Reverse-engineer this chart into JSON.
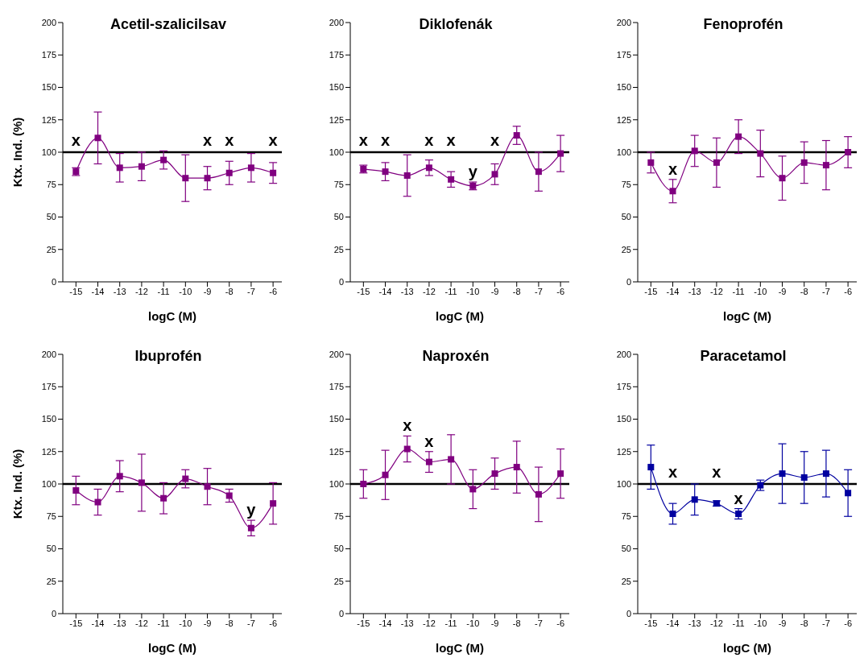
{
  "chart_data": [
    {
      "type": "line",
      "title": "Acetil-szalicilsav",
      "xlabel": "logC (M)",
      "ylabel": "Ktx. Ind. (%)",
      "x": [
        -15,
        -14,
        -13,
        -12,
        -11,
        -10,
        -9,
        -8,
        -7,
        -6
      ],
      "xlim": [
        -15.6,
        -5.6
      ],
      "xticks": [
        -15,
        -14,
        -13,
        -12,
        -11,
        -10,
        -9,
        -8,
        -7,
        -6
      ],
      "ylim": [
        0,
        200
      ],
      "yticks": [
        0,
        25,
        50,
        75,
        100,
        125,
        150,
        175,
        200
      ],
      "grid": false,
      "marker": "square",
      "legend": false,
      "series": [
        {
          "color": "#800080",
          "values": [
            85,
            111,
            88,
            89,
            94,
            80,
            80,
            84,
            88,
            84
          ],
          "errors": [
            3,
            20,
            11,
            11,
            7,
            18,
            9,
            9,
            11,
            8
          ],
          "value_labels": [
            "x",
            null,
            null,
            null,
            null,
            null,
            "x",
            "x",
            null,
            "x"
          ]
        }
      ],
      "ref_lines": [
        {
          "axis": "y",
          "value": 100,
          "color": "#000000"
        }
      ]
    },
    {
      "type": "line",
      "title": "Diklofenák",
      "xlabel": "logC (M)",
      "x": [
        -15,
        -14,
        -13,
        -12,
        -11,
        -10,
        -9,
        -8,
        -7,
        -6
      ],
      "xlim": [
        -15.6,
        -5.6
      ],
      "xticks": [
        -15,
        -14,
        -13,
        -12,
        -11,
        -10,
        -9,
        -8,
        -7,
        -6
      ],
      "ylim": [
        0,
        200
      ],
      "yticks": [
        0,
        25,
        50,
        75,
        100,
        125,
        150,
        175,
        200
      ],
      "grid": false,
      "marker": "square",
      "legend": false,
      "series": [
        {
          "color": "#800080",
          "values": [
            87,
            85,
            82,
            88,
            79,
            74,
            83,
            113,
            85,
            99
          ],
          "errors": [
            3,
            7,
            16,
            6,
            6,
            3,
            8,
            7,
            15,
            14
          ],
          "value_labels": [
            "x",
            "x",
            null,
            "x",
            "x",
            "y",
            "x",
            null,
            null,
            null
          ]
        }
      ],
      "ref_lines": [
        {
          "axis": "y",
          "value": 100,
          "color": "#000000"
        }
      ]
    },
    {
      "type": "line",
      "title": "Fenoprofén",
      "xlabel": "logC (M)",
      "x": [
        -15,
        -14,
        -13,
        -12,
        -11,
        -10,
        -9,
        -8,
        -7,
        -6
      ],
      "xlim": [
        -15.6,
        -5.6
      ],
      "xticks": [
        -15,
        -14,
        -13,
        -12,
        -11,
        -10,
        -9,
        -8,
        -7,
        -6
      ],
      "ylim": [
        0,
        200
      ],
      "yticks": [
        0,
        25,
        50,
        75,
        100,
        125,
        150,
        175,
        200
      ],
      "grid": false,
      "marker": "square",
      "legend": false,
      "series": [
        {
          "color": "#800080",
          "values": [
            92,
            70,
            101,
            92,
            112,
            99,
            80,
            92,
            90,
            100
          ],
          "errors": [
            8,
            9,
            12,
            19,
            13,
            18,
            17,
            16,
            19,
            12
          ],
          "value_labels": [
            null,
            "x",
            null,
            null,
            null,
            null,
            null,
            null,
            null,
            null
          ]
        }
      ],
      "ref_lines": [
        {
          "axis": "y",
          "value": 100,
          "color": "#000000"
        }
      ]
    },
    {
      "type": "line",
      "title": "Ibuprofén",
      "xlabel": "logC (M)",
      "ylabel": "Ktx. Ind. (%)",
      "x": [
        -15,
        -14,
        -13,
        -12,
        -11,
        -10,
        -9,
        -8,
        -7,
        -6
      ],
      "xlim": [
        -15.6,
        -5.6
      ],
      "xticks": [
        -15,
        -14,
        -13,
        -12,
        -11,
        -10,
        -9,
        -8,
        -7,
        -6
      ],
      "ylim": [
        0,
        200
      ],
      "yticks": [
        0,
        25,
        50,
        75,
        100,
        125,
        150,
        175,
        200
      ],
      "grid": false,
      "marker": "square",
      "legend": false,
      "series": [
        {
          "color": "#800080",
          "values": [
            95,
            86,
            106,
            101,
            89,
            104,
            98,
            91,
            66,
            85
          ],
          "errors": [
            11,
            10,
            12,
            22,
            12,
            7,
            14,
            5,
            6,
            16
          ],
          "value_labels": [
            null,
            null,
            null,
            null,
            null,
            null,
            null,
            null,
            "y",
            null
          ]
        }
      ],
      "ref_lines": [
        {
          "axis": "y",
          "value": 100,
          "color": "#000000"
        }
      ]
    },
    {
      "type": "line",
      "title": "Naproxén",
      "xlabel": "logC (M)",
      "x": [
        -15,
        -14,
        -13,
        -12,
        -11,
        -10,
        -9,
        -8,
        -7,
        -6
      ],
      "xlim": [
        -15.6,
        -5.6
      ],
      "xticks": [
        -15,
        -14,
        -13,
        -12,
        -11,
        -10,
        -9,
        -8,
        -7,
        -6
      ],
      "ylim": [
        0,
        200
      ],
      "yticks": [
        0,
        25,
        50,
        75,
        100,
        125,
        150,
        175,
        200
      ],
      "grid": false,
      "marker": "square",
      "legend": false,
      "series": [
        {
          "color": "#800080",
          "values": [
            100,
            107,
            127,
            117,
            119,
            96,
            108,
            113,
            92,
            108
          ],
          "errors": [
            11,
            19,
            10,
            8,
            19,
            15,
            12,
            20,
            21,
            19
          ],
          "value_labels": [
            null,
            null,
            "x",
            "x",
            null,
            null,
            null,
            null,
            null,
            null
          ]
        }
      ],
      "ref_lines": [
        {
          "axis": "y",
          "value": 100,
          "color": "#000000"
        }
      ]
    },
    {
      "type": "line",
      "title": "Paracetamol",
      "xlabel": "logC (M)",
      "x": [
        -15,
        -14,
        -13,
        -12,
        -11,
        -10,
        -9,
        -8,
        -7,
        -6
      ],
      "xlim": [
        -15.6,
        -5.6
      ],
      "xticks": [
        -15,
        -14,
        -13,
        -12,
        -11,
        -10,
        -9,
        -8,
        -7,
        -6
      ],
      "ylim": [
        0,
        200
      ],
      "yticks": [
        0,
        25,
        50,
        75,
        100,
        125,
        150,
        175,
        200
      ],
      "grid": false,
      "marker": "square",
      "legend": false,
      "series": [
        {
          "color": "#0000a0",
          "values": [
            113,
            77,
            88,
            85,
            77,
            99,
            108,
            105,
            108,
            93
          ],
          "errors": [
            17,
            8,
            12,
            2,
            4,
            4,
            23,
            20,
            18,
            18
          ],
          "value_labels": [
            null,
            "x",
            null,
            "x",
            "x",
            null,
            null,
            null,
            null,
            null
          ]
        }
      ],
      "ref_lines": [
        {
          "axis": "y",
          "value": 100,
          "color": "#000000"
        }
      ]
    }
  ]
}
